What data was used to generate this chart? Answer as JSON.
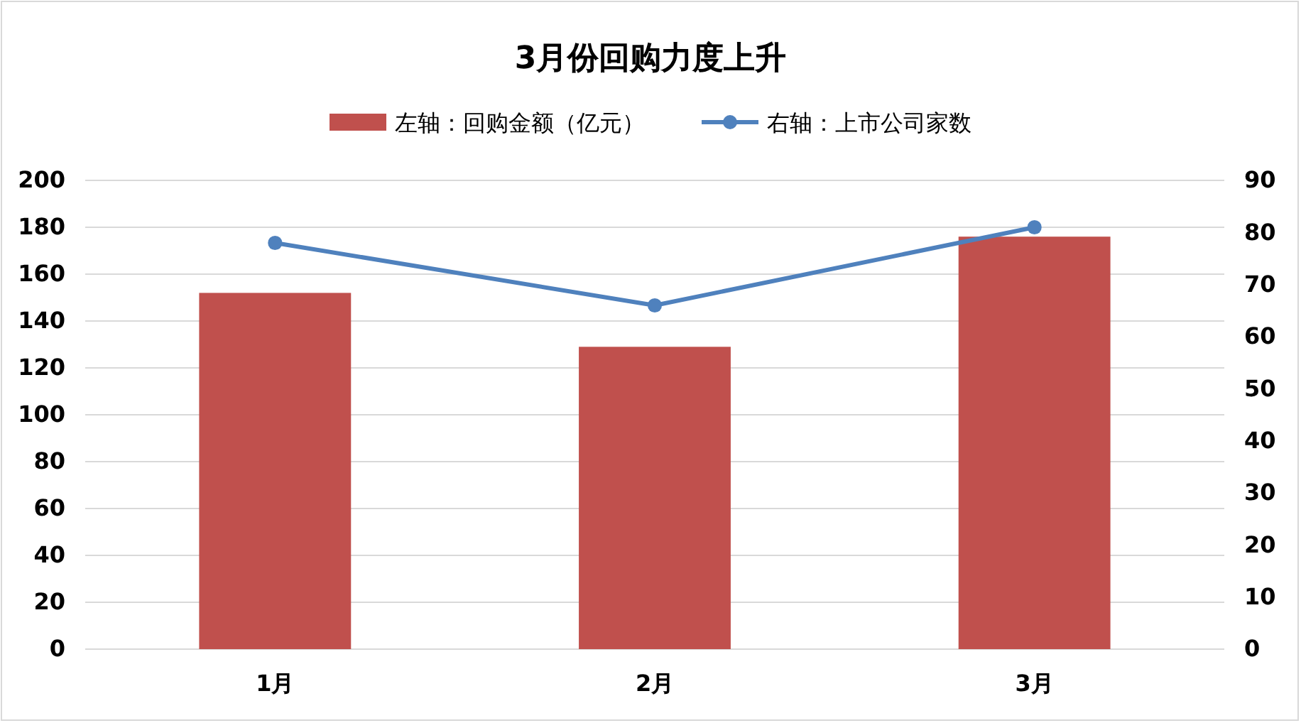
{
  "chart_data": {
    "type": "bar",
    "title": "3月份回购力度上升",
    "categories": [
      "1月",
      "2月",
      "3月"
    ],
    "series": [
      {
        "name": "左轴：回购金额（亿元）",
        "color": "#c0504d",
        "values": [
          152,
          129,
          176
        ]
      },
      {
        "name": "右轴：上市公司家数",
        "type": "line",
        "axis": "y2",
        "color": "#4f81bd",
        "values": [
          78,
          66,
          81
        ],
        "marker": "circle"
      }
    ],
    "ylim": [
      0,
      200
    ],
    "yticks": [
      0,
      20,
      40,
      60,
      80,
      100,
      120,
      140,
      160,
      180,
      200
    ],
    "y2lim": [
      0,
      90
    ],
    "y2ticks": [
      0,
      10,
      20,
      30,
      40,
      50,
      60,
      70,
      80,
      90
    ],
    "grid": "y",
    "legend": "top"
  }
}
